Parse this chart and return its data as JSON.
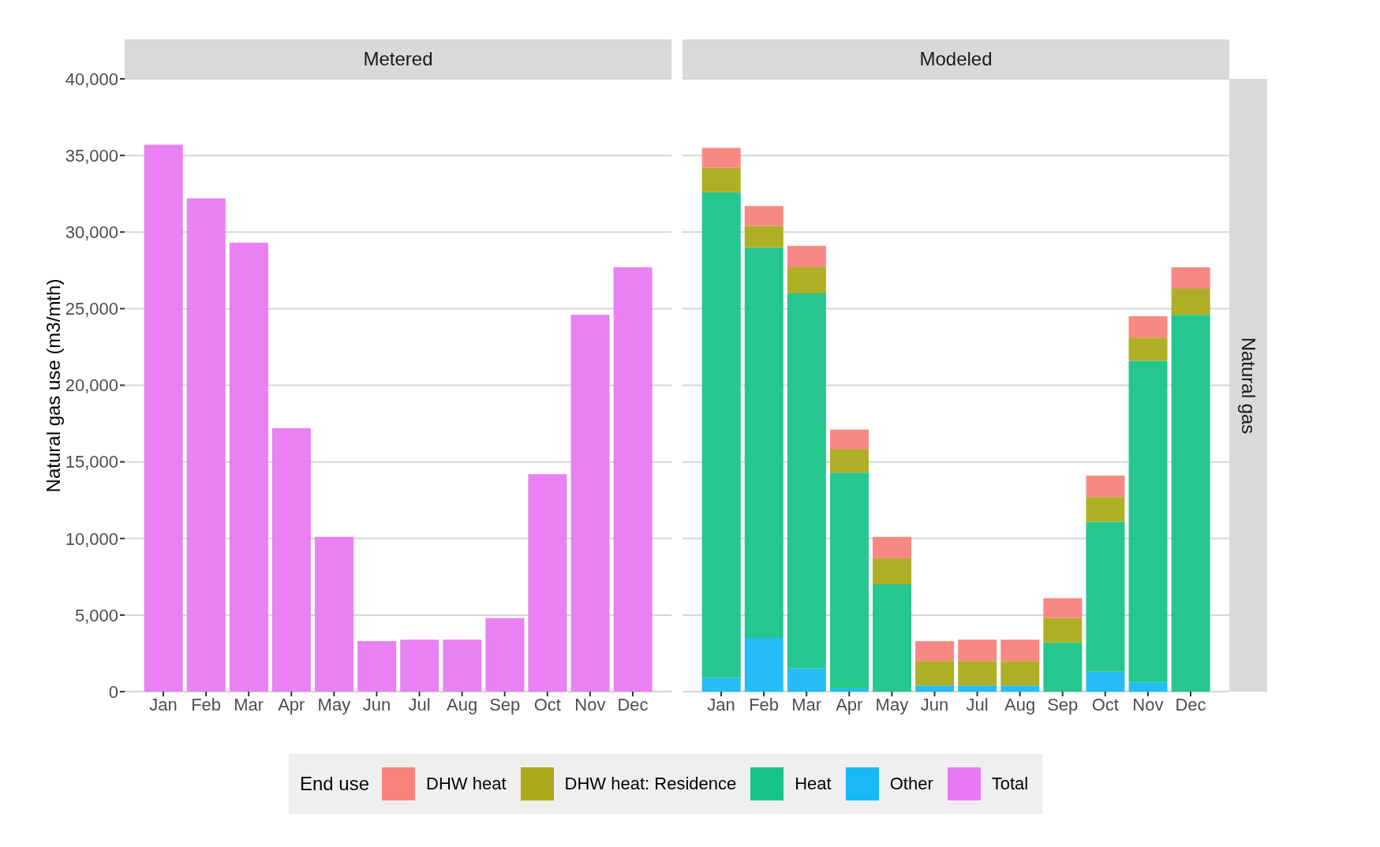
{
  "chart_data": [
    {
      "type": "bar",
      "title": "Metered",
      "ylabel": "Natural gas use (m3/mth)",
      "categories": [
        "Jan",
        "Feb",
        "Mar",
        "Apr",
        "May",
        "Jun",
        "Jul",
        "Aug",
        "Sep",
        "Oct",
        "Nov",
        "Dec"
      ],
      "series": [
        {
          "name": "Total",
          "color": "#e879f2",
          "values": [
            35700,
            32200,
            29300,
            17200,
            10100,
            3300,
            3400,
            3400,
            4800,
            14200,
            24600,
            27700
          ]
        }
      ],
      "ylim": [
        0,
        40000
      ],
      "yticks": [
        {
          "value": 0,
          "label": "0"
        },
        {
          "value": 5000,
          "label": "5,000"
        },
        {
          "value": 10000,
          "label": "10,000"
        },
        {
          "value": 15000,
          "label": "15,000"
        },
        {
          "value": 20000,
          "label": "20,000"
        },
        {
          "value": 25000,
          "label": "25,000"
        },
        {
          "value": 30000,
          "label": "30,000"
        },
        {
          "value": 35000,
          "label": "35,000"
        },
        {
          "value": 40000,
          "label": "40,000"
        }
      ],
      "grid": "y",
      "legend": "bottom"
    },
    {
      "type": "bar",
      "title": "Modeled",
      "legend_title": "End use",
      "annotations": [
        "Natural gas"
      ],
      "categories": [
        "Jan",
        "Feb",
        "Mar",
        "Apr",
        "May",
        "Jun",
        "Jul",
        "Aug",
        "Sep",
        "Oct",
        "Nov",
        "Dec"
      ],
      "stacked": true,
      "series": [
        {
          "name": "Other",
          "color": "#19b8f7",
          "values": [
            900,
            3500,
            1500,
            200,
            0,
            400,
            400,
            400,
            0,
            1300,
            600,
            0
          ]
        },
        {
          "name": "Heat",
          "color": "#19c489",
          "values": [
            31700,
            25500,
            24500,
            14100,
            7000,
            0,
            0,
            0,
            3200,
            9800,
            21000,
            24600
          ]
        },
        {
          "name": "DHW heat: Residence",
          "color": "#abab19",
          "values": [
            1600,
            1400,
            1700,
            1500,
            1700,
            1600,
            1600,
            1600,
            1600,
            1600,
            1500,
            1700
          ]
        },
        {
          "name": "DHW heat",
          "color": "#f8837b",
          "values": [
            1300,
            1300,
            1400,
            1300,
            1400,
            1300,
            1400,
            1400,
            1300,
            1400,
            1400,
            1400
          ]
        }
      ],
      "ylim": [
        0,
        40000
      ],
      "yticks": [
        0,
        5000,
        10000,
        15000,
        20000,
        25000,
        30000,
        35000,
        40000
      ],
      "tick_labels": "x",
      "grid": "y",
      "legend": "bottom"
    }
  ]
}
